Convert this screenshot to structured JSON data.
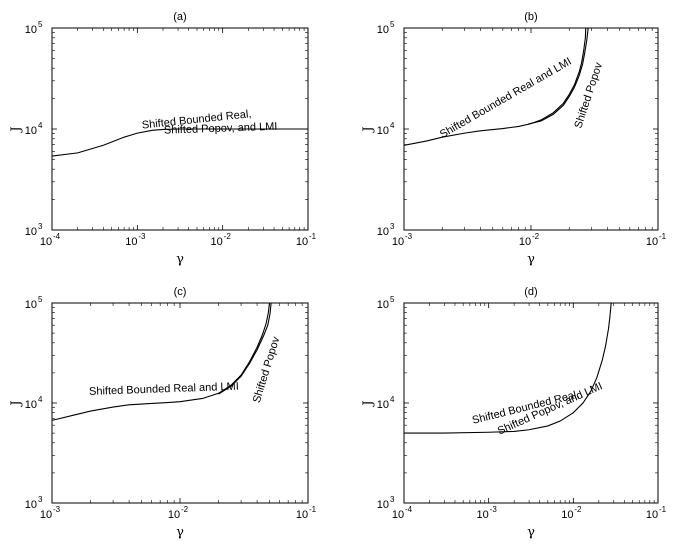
{
  "chart_data": [
    {
      "type": "line",
      "title": "(a)",
      "xlabel": "γ",
      "ylabel": "J",
      "xscale": "log",
      "yscale": "log",
      "xlim": [
        0.0001,
        0.1
      ],
      "ylim": [
        1000,
        100000
      ],
      "x_ticks": [
        "10|-4",
        "10|-3",
        "10|-2",
        "10|-1"
      ],
      "y_ticks": [
        "10|3",
        "10|4",
        "10|5"
      ],
      "grid": false,
      "series": [
        {
          "x": [
            0.0001,
            0.0002,
            0.0004,
            0.0007,
            0.001,
            0.0015,
            0.002,
            0.003,
            0.005,
            0.01,
            0.02,
            0.05,
            0.1
          ],
          "y": [
            5400,
            5800,
            6900,
            8300,
            9100,
            9700,
            9900,
            10000,
            10000,
            10000,
            10000,
            10000,
            10000
          ]
        }
      ],
      "annotations": [
        {
          "text": "Shifted Bounded Real,",
          "x": 0.005,
          "y": 11500,
          "angle": -6
        },
        {
          "text": "Shifted Popov, and LMI",
          "x": 0.0095,
          "y": 9400,
          "angle": -2
        }
      ]
    },
    {
      "type": "line",
      "title": "(b)",
      "xlabel": "γ",
      "ylabel": "J",
      "xscale": "log",
      "yscale": "log",
      "xlim": [
        0.001,
        0.1
      ],
      "ylim": [
        1000,
        100000
      ],
      "x_ticks": [
        "10|-3",
        "10|-2",
        "10|-1"
      ],
      "y_ticks": [
        "10|3",
        "10|4",
        "10|5"
      ],
      "grid": false,
      "series": [
        {
          "x": [
            0.001,
            0.0015,
            0.002,
            0.003,
            0.004,
            0.006,
            0.008,
            0.01,
            0.012,
            0.015,
            0.018,
            0.02,
            0.022,
            0.024,
            0.025,
            0.026,
            0.0268,
            0.027
          ],
          "y": [
            6900,
            7600,
            8300,
            9100,
            9600,
            10100,
            10600,
            11300,
            12300,
            14500,
            18000,
            22000,
            27500,
            37000,
            45000,
            60000,
            80000,
            100000
          ]
        },
        {
          "x": [
            0.0095,
            0.012,
            0.015,
            0.018,
            0.02,
            0.022,
            0.024,
            0.0255,
            0.0265,
            0.0275,
            0.0282
          ],
          "y": [
            11200,
            12000,
            14000,
            17200,
            21000,
            26000,
            34000,
            44000,
            57000,
            76000,
            100000
          ]
        }
      ],
      "annotations": [
        {
          "text": "Shifted Bounded Real and LMI",
          "x": 0.0065,
          "y": 19000,
          "angle": -30
        },
        {
          "text": "Shifted Popov",
          "x": 0.03,
          "y": 21000,
          "angle": -72
        }
      ]
    },
    {
      "type": "line",
      "title": "(c)",
      "xlabel": "γ",
      "ylabel": "J",
      "xscale": "log",
      "yscale": "log",
      "xlim": [
        0.001,
        0.1
      ],
      "ylim": [
        1000,
        100000
      ],
      "x_ticks": [
        "10|-3",
        "10|-2",
        "10|-1"
      ],
      "y_ticks": [
        "10|3",
        "10|4",
        "10|5"
      ],
      "grid": false,
      "series": [
        {
          "x": [
            0.001,
            0.0015,
            0.002,
            0.003,
            0.004,
            0.006,
            0.008,
            0.01,
            0.015,
            0.02,
            0.025,
            0.03,
            0.035,
            0.04,
            0.044,
            0.047,
            0.049,
            0.05
          ],
          "y": [
            6700,
            7600,
            8300,
            9100,
            9600,
            9900,
            10100,
            10300,
            11100,
            12500,
            15000,
            19000,
            26000,
            36000,
            48000,
            62000,
            80000,
            100000
          ]
        },
        {
          "x": [
            0.02,
            0.025,
            0.03,
            0.035,
            0.04,
            0.045,
            0.0485,
            0.0505,
            0.0515
          ],
          "y": [
            12300,
            14700,
            18500,
            25000,
            34000,
            47000,
            60000,
            78000,
            100000
          ]
        }
      ],
      "annotations": [
        {
          "text": "Shifted Bounded Real and LMI",
          "x": 0.0075,
          "y": 12800,
          "angle": -2
        },
        {
          "text": "Shifted Popov",
          "x": 0.05,
          "y": 21000,
          "angle": -73
        }
      ]
    },
    {
      "type": "line",
      "title": "(d)",
      "xlabel": "γ",
      "ylabel": "J",
      "xscale": "log",
      "yscale": "log",
      "xlim": [
        0.0001,
        0.1
      ],
      "ylim": [
        1000,
        100000
      ],
      "x_ticks": [
        "10|-4",
        "10|-3",
        "10|-2",
        "10|-1"
      ],
      "y_ticks": [
        "10|3",
        "10|4",
        "10|5"
      ],
      "grid": false,
      "series": [
        {
          "x": [
            0.0001,
            0.0003,
            0.001,
            0.002,
            0.003,
            0.005,
            0.007,
            0.01,
            0.013,
            0.016,
            0.019,
            0.022,
            0.024,
            0.026,
            0.027,
            0.028
          ],
          "y": [
            5000,
            5000,
            5100,
            5200,
            5400,
            5900,
            6600,
            8000,
            10000,
            13000,
            18000,
            27000,
            37000,
            55000,
            72000,
            100000
          ]
        }
      ],
      "annotations": [
        {
          "text": "Shifted Bounded Real,",
          "x": 0.0028,
          "y": 8400,
          "angle": -14
        },
        {
          "text": "Shifted Popov, and LMI",
          "x": 0.0055,
          "y": 8200,
          "angle": -24
        }
      ]
    }
  ]
}
